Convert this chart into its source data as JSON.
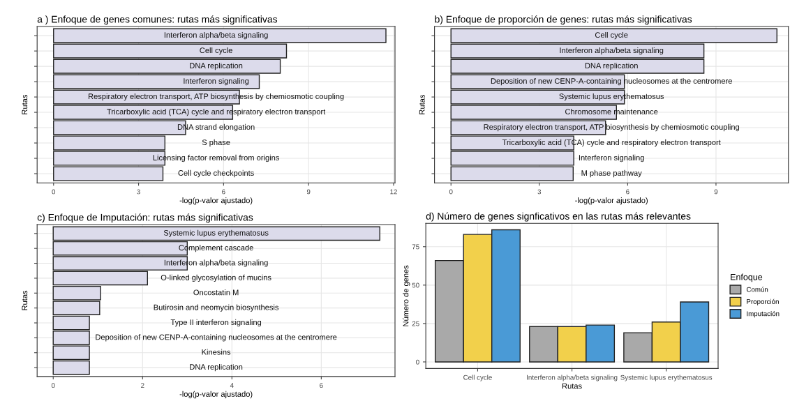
{
  "chart_data": [
    {
      "type": "bar",
      "orientation": "horizontal",
      "title": "a ) Enfoque de genes comunes: rutas más significativas",
      "xlabel": "-log(p-valor ajustado)",
      "ylabel": "Rutas",
      "categories": [
        "Interferon alpha/beta signaling",
        "Cell cycle",
        "DNA replication",
        "Interferon signaling",
        "Respiratory electron transport, ATP biosynthesis by chemiosmotic coupling",
        "Tricarboxylic acid (TCA) cycle and respiratory electron transport",
        "DNA strand elongation",
        "S phase",
        "Licensing factor removal from origins",
        "Cell cycle checkpoints"
      ],
      "values": [
        11.73,
        8.22,
        8.0,
        7.26,
        6.56,
        6.32,
        4.66,
        3.93,
        3.93,
        3.86
      ],
      "color": "#dcdbeb",
      "xlim": [
        -0.58,
        12.05
      ],
      "xticks": [
        0,
        3,
        6,
        9,
        12
      ],
      "grid": true,
      "tick_labels": "x"
    },
    {
      "type": "bar",
      "orientation": "horizontal",
      "title": "b) Enfoque de proporción de genes: rutas más significativas",
      "xlabel": "-log(p-valor ajustado)",
      "ylabel": "Rutas",
      "categories": [
        "Cell cycle",
        "Interferon alpha/beta signaling",
        "DNA replication",
        "Deposition of new CENP-A-containing nucleosomes at the centromere",
        "Systemic lupus erythematosus",
        "Chromosome maintenance",
        "Respiratory electron transport, ATP biosynthesis by chemiosmotic coupling",
        "Tricarboxylic acid (TCA) cycle and respiratory electron transport",
        "Interferon signaling",
        "M phase pathway"
      ],
      "values": [
        11.07,
        8.59,
        8.59,
        5.89,
        5.89,
        5.62,
        5.25,
        4.17,
        4.17,
        4.15
      ],
      "color": "#dcdbeb",
      "xlim": [
        -0.56,
        11.46
      ],
      "xticks": [
        0,
        3,
        6,
        9
      ],
      "grid": true,
      "tick_labels": "x"
    },
    {
      "type": "bar",
      "orientation": "horizontal",
      "title": "c) Enfoque de Imputación: rutas más significativas",
      "xlabel": "-log(p-valor ajustado)",
      "ylabel": "Rutas",
      "categories": [
        "Systemic lupus erythematosus",
        "Complement cascade",
        "Interferon alpha/beta signaling",
        "O-linked glycosylation of mucins",
        "Oncostatin M",
        "Butirosin and neomycin biosynthesis",
        "Type II interferon signaling",
        "Deposition of new CENP-A-containing nucleosomes at the centromere",
        "Kinesins",
        "DNA replication"
      ],
      "values": [
        7.31,
        3.0,
        3.0,
        2.11,
        1.06,
        1.04,
        0.81,
        0.81,
        0.81,
        0.81
      ],
      "color": "#dcdbeb",
      "xlim": [
        -0.36,
        7.65
      ],
      "xticks": [
        0,
        2,
        4,
        6
      ],
      "grid": true,
      "tick_labels": "x"
    },
    {
      "type": "bar",
      "title": "d) Número de genes signficativos en las rutas más relevantes",
      "xlabel": "Rutas",
      "ylabel": "Número de genes",
      "legend_title": "Enfoque",
      "categories": [
        "Cell cycle",
        "Interferon alpha/beta signaling",
        "Systemic lupus erythematosus"
      ],
      "series": [
        {
          "name": "Común",
          "color": "#a9a9a9",
          "values": [
            66,
            23,
            19
          ]
        },
        {
          "name": "Proporción",
          "color": "#f2d04b",
          "values": [
            83,
            23,
            26
          ]
        },
        {
          "name": "Imputación",
          "color": "#4a9ad6",
          "values": [
            86,
            24,
            39
          ]
        }
      ],
      "ylim": [
        -4.3,
        90.2
      ],
      "yticks": [
        0,
        25,
        50,
        75
      ],
      "grid": true,
      "legend": "right"
    }
  ]
}
